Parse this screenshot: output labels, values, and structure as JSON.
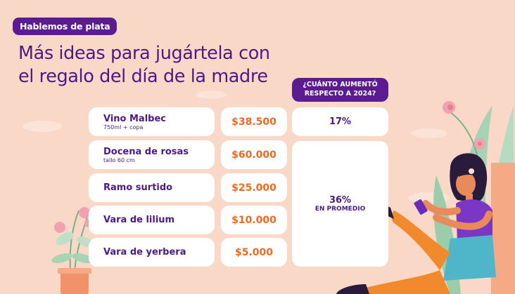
{
  "tag": "Hablemos de plata",
  "title": {
    "line1": "Más ideas para jugártela con",
    "line2": "el regalo del día de la madre"
  },
  "increase_header": {
    "line1": "¿CUÁNTO AUMENTÓ",
    "line2": "RESPECTO A 2024?"
  },
  "items": [
    {
      "name": "Vino Malbec",
      "detail": "750ml + copa",
      "price": "$38.500"
    },
    {
      "name": "Docena de rosas",
      "detail": "tallo 60 cm",
      "price": "$60.000"
    },
    {
      "name": "Ramo surtido",
      "detail": "",
      "price": "$25.000"
    },
    {
      "name": "Vara de lilium",
      "detail": "",
      "price": "$10.000"
    },
    {
      "name": "Vara de yerbera",
      "detail": "",
      "price": "$5.000"
    }
  ],
  "increase": {
    "first": "17%",
    "rest_value": "36%",
    "rest_label": "EN PROMEDIO"
  },
  "colors": {
    "background": "#f9d8c8",
    "purple": "#5b1b91",
    "title": "#4c1a84",
    "price": "#ee6a24"
  }
}
